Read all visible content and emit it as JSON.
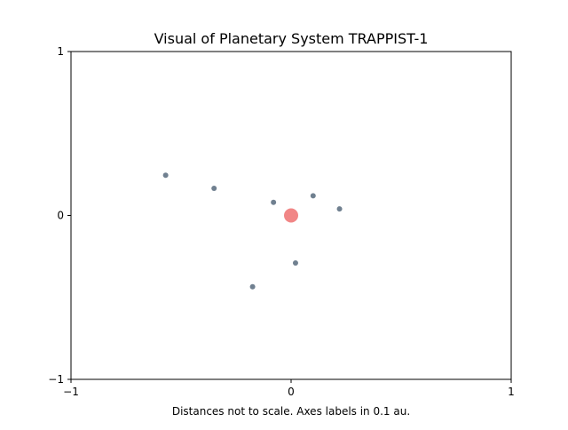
{
  "chart_data": {
    "type": "scatter",
    "title": "Visual of Planetary System TRAPPIST-1",
    "xlabel": "Distances not to scale. Axes labels in 0.1 au.",
    "ylabel": "",
    "xlim": [
      -1,
      1
    ],
    "ylim": [
      -1,
      1
    ],
    "x_ticks": [
      {
        "value": -1,
        "label": "−1"
      },
      {
        "value": 0,
        "label": "0"
      },
      {
        "value": 1,
        "label": "1"
      }
    ],
    "y_ticks": [
      {
        "value": -1,
        "label": "−1"
      },
      {
        "value": 0,
        "label": "0"
      },
      {
        "value": 1,
        "label": "1"
      }
    ],
    "grid": false,
    "legend": "none",
    "star": {
      "x": 0,
      "y": 0,
      "color": "#f08080"
    },
    "planet_color": "#708090",
    "planets": [
      {
        "x": 0.22,
        "y": 0.04
      },
      {
        "x": 0.1,
        "y": 0.12
      },
      {
        "x": -0.08,
        "y": 0.08
      },
      {
        "x": 0.02,
        "y": -0.29
      },
      {
        "x": -0.35,
        "y": 0.165
      },
      {
        "x": -0.175,
        "y": -0.435
      },
      {
        "x": -0.57,
        "y": 0.245
      }
    ]
  }
}
